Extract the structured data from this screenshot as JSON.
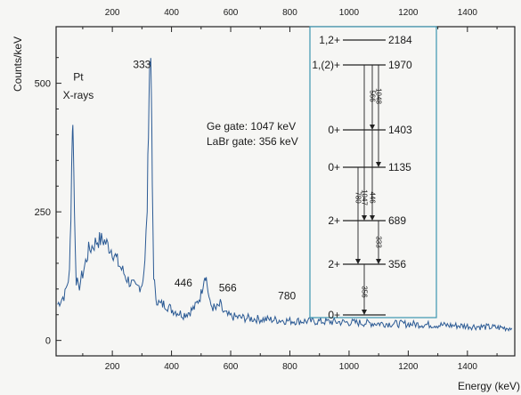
{
  "chart_data": {
    "type": "line",
    "xlabel": "Energy (keV)",
    "ylabel": "Counts/keV",
    "xlim": [
      10,
      1560
    ],
    "ylim": [
      -30,
      610
    ],
    "x_ticks": [
      200,
      400,
      600,
      800,
      1000,
      1200,
      1400
    ],
    "x_ticks_top": [
      200,
      400,
      600,
      800,
      1000,
      1200,
      1400
    ],
    "y_ticks": [
      0,
      250,
      500
    ],
    "grid": false,
    "line_color": "#2b5a94",
    "series": [
      {
        "x": [
          15,
          40,
          55,
          60,
          65,
          68,
          72,
          78,
          85,
          100,
          120,
          150,
          170,
          185,
          200,
          220,
          250,
          280,
          300,
          310,
          318,
          322,
          326,
          328,
          332,
          335,
          340,
          345,
          350,
          360,
          380,
          400,
          420,
          440,
          460,
          480,
          500,
          510,
          515,
          520,
          530,
          550,
          565,
          575,
          590,
          620,
          680,
          750,
          800,
          900,
          1000,
          1100,
          1200,
          1300,
          1400,
          1500,
          1550
        ],
        "y": [
          70,
          90,
          130,
          250,
          420,
          400,
          250,
          120,
          100,
          130,
          175,
          195,
          195,
          185,
          175,
          150,
          120,
          100,
          110,
          150,
          260,
          420,
          530,
          560,
          480,
          300,
          130,
          90,
          80,
          70,
          70,
          60,
          55,
          50,
          55,
          65,
          90,
          125,
          130,
          110,
          70,
          60,
          70,
          55,
          48,
          45,
          42,
          40,
          38,
          37,
          35,
          33,
          32,
          30,
          28,
          25,
          24
        ]
      }
    ],
    "annotations": [
      {
        "text": "Pt",
        "x": 85,
        "y": 505
      },
      {
        "text": "X-rays",
        "x": 85,
        "y": 470
      },
      {
        "text": "333",
        "x": 300,
        "y": 530
      },
      {
        "text": "446",
        "x": 440,
        "y": 105
      },
      {
        "text": "566",
        "x": 590,
        "y": 95
      },
      {
        "text": "780",
        "x": 790,
        "y": 80
      }
    ],
    "gate_text": [
      "Ge gate: 1047 keV",
      "LaBr gate: 356 keV"
    ],
    "level_scheme": {
      "levels": [
        {
          "spin": "1,2+",
          "energy": "2184"
        },
        {
          "spin": "1,(2)+",
          "energy": "1970"
        },
        {
          "spin": "0+",
          "energy": "1403"
        },
        {
          "spin": "0+",
          "energy": "1135"
        },
        {
          "spin": "2+",
          "energy": "689"
        },
        {
          "spin": "2+",
          "energy": "356"
        },
        {
          "spin": "0+",
          "energy": ""
        }
      ],
      "transitions": [
        "566",
        "1048",
        "780",
        "1047",
        "446",
        "333",
        "356"
      ]
    }
  }
}
